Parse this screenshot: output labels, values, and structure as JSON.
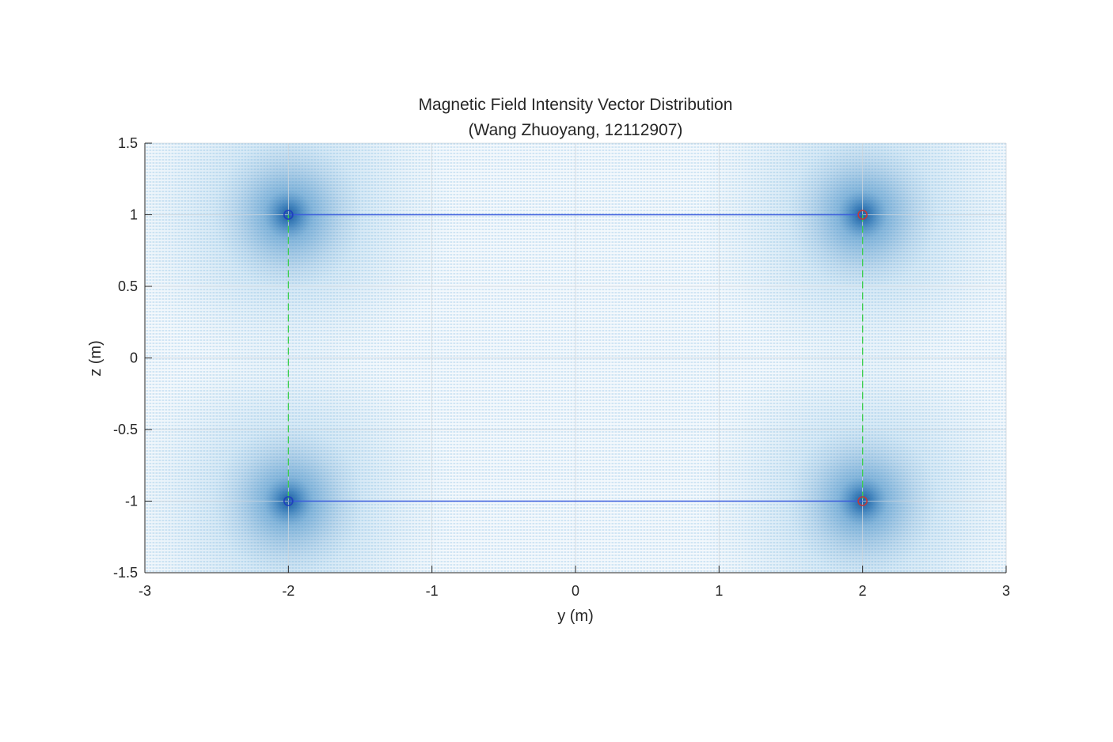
{
  "chart_data": {
    "type": "vector-field",
    "title": "Magnetic Field Intensity Vector Distribution",
    "subtitle": "(Wang Zhuoyang, 12112907)",
    "xlabel": "y (m)",
    "ylabel": "z (m)",
    "xlim": [
      -3,
      3
    ],
    "ylim": [
      -1.5,
      1.5
    ],
    "xticks": [
      -3,
      -2,
      -1,
      0,
      1,
      2,
      3
    ],
    "xtick_labels": [
      "-3",
      "-2",
      "-1",
      "0",
      "1",
      "2",
      "3"
    ],
    "yticks": [
      -1.5,
      -1,
      -0.5,
      0,
      0.5,
      1,
      1.5
    ],
    "ytick_labels": [
      "-1.5",
      "-1",
      "-0.5",
      "0",
      "0.5",
      "1",
      "1.5"
    ],
    "grid": true,
    "field_color": "#4fa8d8",
    "field_sources": [
      {
        "y": -2,
        "z": 1
      },
      {
        "y": 2,
        "z": 1
      },
      {
        "y": -2,
        "z": -1
      },
      {
        "y": 2,
        "z": -1
      }
    ],
    "conductors": [
      {
        "y": -2,
        "z": 1,
        "color": "#1f3fbf"
      },
      {
        "y": -2,
        "z": -1,
        "color": "#1f3fbf"
      },
      {
        "y": 2,
        "z": 1,
        "color": "#c0393b"
      },
      {
        "y": 2,
        "z": -1,
        "color": "#c0393b"
      }
    ],
    "solid_lines": [
      {
        "from": [
          -2,
          1
        ],
        "to": [
          2,
          1
        ],
        "color": "#3a5bdc"
      },
      {
        "from": [
          -2,
          -1
        ],
        "to": [
          2,
          -1
        ],
        "color": "#3a5bdc"
      }
    ],
    "dashed_lines": [
      {
        "from": [
          -2,
          1
        ],
        "to": [
          -2,
          -1
        ],
        "color": "#3ccf4e"
      },
      {
        "from": [
          2,
          1
        ],
        "to": [
          2,
          -1
        ],
        "color": "#3ccf4e"
      }
    ]
  }
}
